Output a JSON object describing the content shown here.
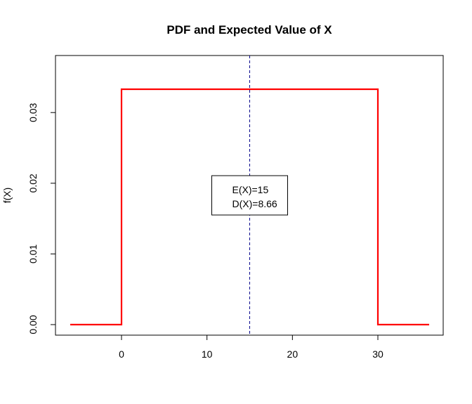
{
  "chart_data": {
    "type": "line",
    "title": "PDF and Expected Value of X",
    "xlabel": "",
    "ylabel": "f(X)",
    "xlim": [
      -6,
      36
    ],
    "ylim": [
      0,
      0.0333
    ],
    "x_ticks": [
      0,
      10,
      20,
      30
    ],
    "x_tick_labels": [
      "0",
      "10",
      "20",
      "30"
    ],
    "y_ticks": [
      0,
      0.01,
      0.02,
      0.03
    ],
    "y_tick_labels": [
      "0.00",
      "0.01",
      "0.02",
      "0.03"
    ],
    "grid": false,
    "series": [
      {
        "color": "#ff0000",
        "x": [
          -6,
          0,
          0,
          30,
          30,
          36
        ],
        "y": [
          0,
          0,
          0.0333,
          0.0333,
          0,
          0
        ]
      }
    ],
    "vline": {
      "x": 15,
      "color": "#00008b",
      "style": "dashed"
    },
    "annotation": {
      "lines": [
        "E(X)=15",
        "D(X)=8.66"
      ],
      "placement": "center"
    }
  }
}
